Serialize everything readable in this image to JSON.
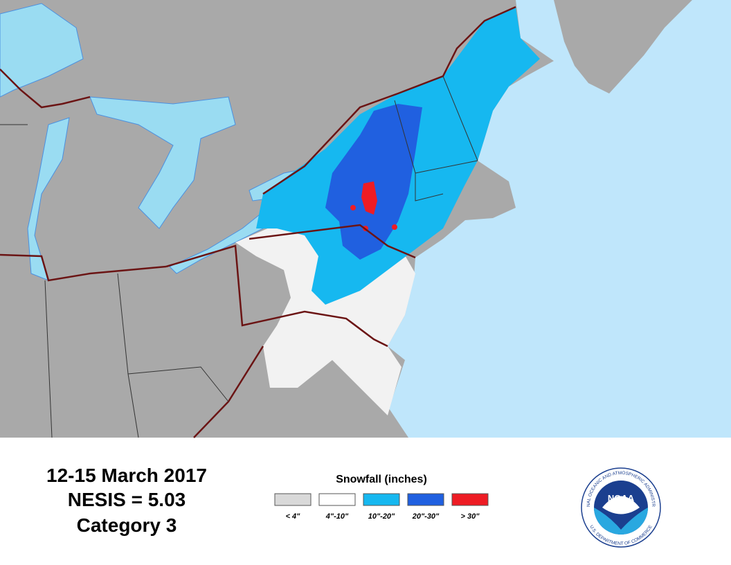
{
  "title_lines": [
    "12-15 March 2017",
    "NESIS = 5.03",
    "Category 3"
  ],
  "legend": {
    "title": "Snowfall (inches)",
    "items": [
      {
        "label": "< 4\"",
        "color": "#d9d9d9"
      },
      {
        "label": "4\"-10\"",
        "color": "#ffffff"
      },
      {
        "label": "10\"-20\"",
        "color": "#16b8f0"
      },
      {
        "label": "20\"-30\"",
        "color": "#2060e0"
      },
      {
        "label": "> 30\"",
        "color": "#ee1c24"
      }
    ]
  },
  "logo": {
    "name": "NOAA",
    "ring_top": "NATIONAL OCEANIC AND ATMOSPHERIC ADMINISTRATION",
    "ring_bottom": "U.S. DEPARTMENT OF COMMERCE"
  }
}
